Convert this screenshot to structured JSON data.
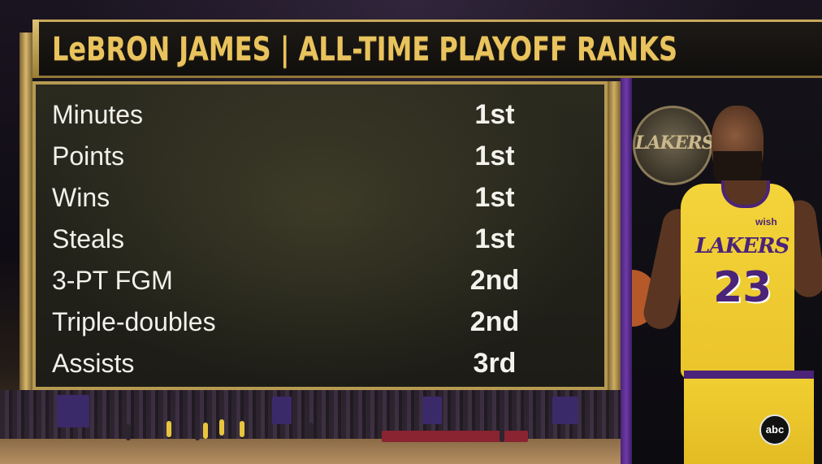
{
  "title": "LeBRON JAMES | ALL-TIME PLAYOFF RANKS",
  "stats": [
    {
      "label": "Minutes",
      "rank": "1st"
    },
    {
      "label": "Points",
      "rank": "1st"
    },
    {
      "label": "Wins",
      "rank": "1st"
    },
    {
      "label": "Steals",
      "rank": "1st"
    },
    {
      "label": "3-PT FGM",
      "rank": "2nd"
    },
    {
      "label": "Triple-doubles",
      "rank": "2nd"
    },
    {
      "label": "Assists",
      "rank": "3rd"
    }
  ],
  "player_graphic": {
    "logo_text": "LAKERS",
    "jersey_brand": "wish",
    "jersey_team": "LAKERS",
    "jersey_number": "23"
  },
  "network_logo": "abc",
  "colors": {
    "title_gold": "#e9c35d",
    "frame_gold": "#b69a52",
    "lakers_purple": "#4b2378",
    "lakers_gold": "#f3d43a",
    "text_white": "#f2f0ea"
  }
}
